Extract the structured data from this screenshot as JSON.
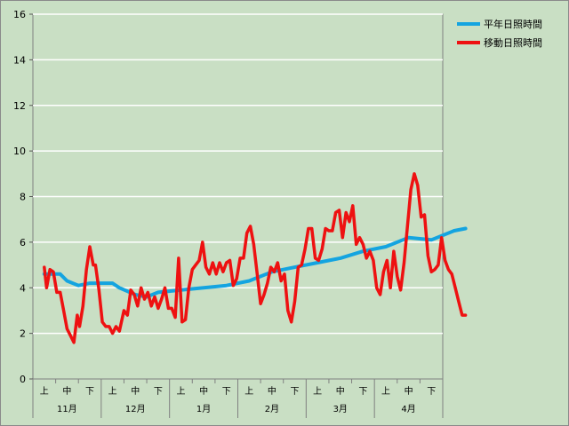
{
  "chart_data": {
    "type": "line",
    "title": "",
    "xlabel": "",
    "ylabel": "",
    "ylim": [
      0,
      16
    ],
    "yticks": [
      0,
      2,
      4,
      6,
      8,
      10,
      12,
      14,
      16
    ],
    "grid": "horizontal",
    "legend_position": "top-right",
    "colors": {
      "background": "#c9dfc4",
      "grid": "#ffffff",
      "normal": "#14a4e0",
      "moving": "#ee1111"
    },
    "x_categories": [
      {
        "month": "11月",
        "periods": [
          "上",
          "中",
          "下"
        ]
      },
      {
        "month": "12月",
        "periods": [
          "上",
          "中",
          "下"
        ]
      },
      {
        "month": "1月",
        "periods": [
          "上",
          "中",
          "下"
        ]
      },
      {
        "month": "2月",
        "periods": [
          "上",
          "中",
          "下"
        ]
      },
      {
        "month": "3月",
        "periods": [
          "上",
          "中",
          "下"
        ]
      },
      {
        "month": "4月",
        "periods": [
          "上",
          "中",
          "下"
        ]
      }
    ],
    "series": [
      {
        "name": "平年日照時間",
        "key": "normal",
        "x": [
          0,
          0.7,
          1,
          1.5,
          2,
          3,
          3.3,
          4,
          4.5,
          5,
          6,
          7,
          8,
          9,
          10,
          11,
          12,
          13,
          14,
          15,
          16,
          17,
          18,
          18.5
        ],
        "values": [
          4.6,
          4.6,
          4.3,
          4.1,
          4.2,
          4.2,
          4.0,
          3.7,
          3.6,
          3.8,
          3.9,
          4.0,
          4.1,
          4.3,
          4.7,
          4.9,
          5.1,
          5.3,
          5.6,
          5.8,
          6.2,
          6.1,
          6.5,
          6.6
        ]
      },
      {
        "name": "移動日照時間",
        "key": "moving",
        "x": [
          0,
          0.1,
          0.25,
          0.4,
          0.55,
          0.7,
          0.85,
          1.0,
          1.15,
          1.3,
          1.45,
          1.55,
          1.7,
          1.85,
          2.0,
          2.15,
          2.25,
          2.4,
          2.55,
          2.7,
          2.85,
          3.0,
          3.15,
          3.3,
          3.5,
          3.65,
          3.8,
          3.95,
          4.1,
          4.25,
          4.4,
          4.55,
          4.7,
          4.85,
          5.0,
          5.15,
          5.3,
          5.45,
          5.6,
          5.75,
          5.9,
          6.05,
          6.2,
          6.35,
          6.5,
          6.65,
          6.8,
          6.95,
          7.1,
          7.25,
          7.4,
          7.55,
          7.7,
          7.85,
          8.0,
          8.15,
          8.3,
          8.45,
          8.6,
          8.75,
          8.9,
          9.05,
          9.2,
          9.35,
          9.5,
          9.65,
          9.8,
          9.95,
          10.1,
          10.25,
          10.4,
          10.55,
          10.7,
          10.85,
          11.0,
          11.15,
          11.3,
          11.45,
          11.6,
          11.75,
          11.9,
          12.05,
          12.2,
          12.35,
          12.5,
          12.65,
          12.8,
          12.95,
          13.1,
          13.25,
          13.4,
          13.55,
          13.7,
          13.85,
          14.0,
          14.15,
          14.3,
          14.45,
          14.6,
          14.75,
          14.9,
          15.05,
          15.2,
          15.35,
          15.5,
          15.65,
          15.8,
          15.95,
          16.1,
          16.25,
          16.4,
          16.55,
          16.7,
          16.85,
          17.0,
          17.15,
          17.3,
          17.45,
          17.6,
          17.75,
          17.9,
          18.05,
          18.2,
          18.35,
          18.5
        ],
        "values": [
          4.9,
          4.0,
          4.8,
          4.7,
          3.8,
          3.8,
          3.0,
          2.2,
          1.9,
          1.6,
          2.8,
          2.3,
          3.2,
          4.8,
          5.8,
          5.0,
          5.0,
          3.9,
          2.5,
          2.3,
          2.3,
          2.0,
          2.3,
          2.1,
          3.0,
          2.8,
          3.9,
          3.7,
          3.2,
          4.0,
          3.5,
          3.8,
          3.2,
          3.6,
          3.1,
          3.5,
          4.0,
          3.1,
          3.1,
          2.7,
          5.3,
          2.5,
          2.6,
          4.0,
          4.8,
          5.0,
          5.2,
          6.0,
          4.9,
          4.6,
          5.1,
          4.6,
          5.1,
          4.7,
          5.1,
          5.2,
          4.1,
          4.4,
          5.3,
          5.3,
          6.4,
          6.7,
          5.9,
          4.6,
          3.3,
          3.7,
          4.2,
          4.9,
          4.7,
          5.1,
          4.3,
          4.6,
          3.0,
          2.5,
          3.4,
          4.9,
          5.0,
          5.7,
          6.6,
          6.6,
          5.3,
          5.2,
          5.7,
          6.6,
          6.5,
          6.5,
          7.3,
          7.4,
          6.2,
          7.3,
          6.9,
          7.6,
          5.9,
          6.2,
          5.9,
          5.3,
          5.6,
          5.2,
          4.0,
          3.7,
          4.7,
          5.2,
          4.0,
          5.6,
          4.5,
          3.9,
          5.1,
          6.7,
          8.3,
          9.0,
          8.5,
          7.1,
          7.2,
          5.4,
          4.7,
          4.8,
          5.0,
          6.2,
          5.2,
          4.8,
          4.6,
          4.0,
          3.4,
          2.8,
          2.8
        ]
      }
    ]
  }
}
